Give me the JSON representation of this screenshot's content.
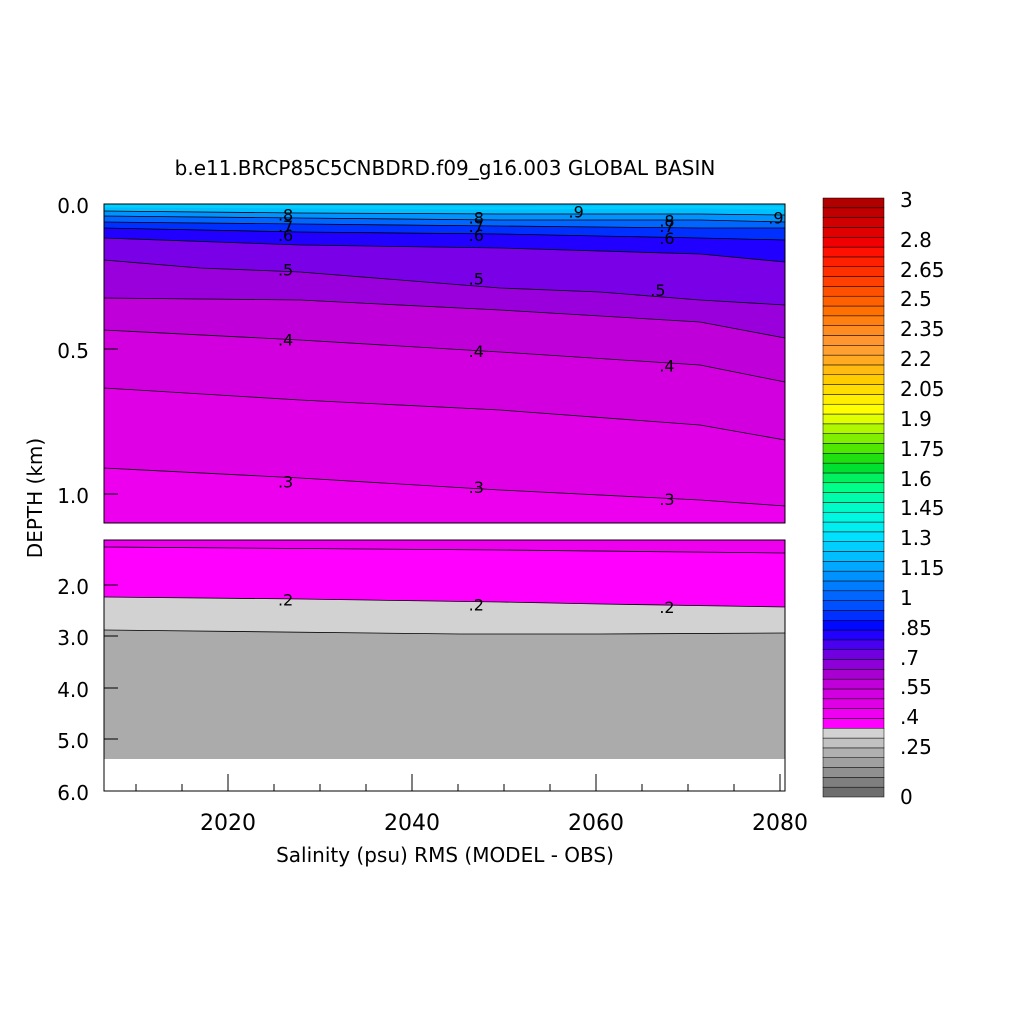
{
  "chart_data": {
    "type": "heatmap",
    "title": "b.e11.BRCP85C5CNBDRD.f09_g16.003 GLOBAL BASIN",
    "xlabel": "Salinity (psu) RMS (MODEL - OBS)",
    "ylabel": "DEPTH (km)",
    "xlim": [
      2006,
      2081
    ],
    "x_ticks": [
      "2020",
      "2040",
      "2060",
      "2080"
    ],
    "y_ticks_upper": [
      "0.0",
      "0.5",
      "1.0"
    ],
    "y_ticks_lower": [
      "2.0",
      "3.0",
      "4.0",
      "5.0",
      "6.0"
    ],
    "ylim_upper": [
      0.0,
      1.1
    ],
    "ylim_lower": [
      1.1,
      6.0
    ],
    "colorbar": {
      "labels": [
        "3",
        "2.8",
        "2.65",
        "2.5",
        "2.35",
        "2.2",
        "2.05",
        "1.9",
        "1.75",
        "1.6",
        "1.45",
        "1.3",
        "1.15",
        "1",
        ".85",
        ".7",
        ".55",
        ".4",
        ".25",
        "0"
      ],
      "colors": [
        "#6e6e6e",
        "#7f7f7f",
        "#909090",
        "#a0a0a0",
        "#b0b0b0",
        "#c2c2c2",
        "#d2d2d2",
        "#ff00ff",
        "#f000f0",
        "#e000e6",
        "#d000e0",
        "#c000d8",
        "#a800d0",
        "#8e00d8",
        "#7000e0",
        "#4a00f0",
        "#2200ff",
        "#0008ff",
        "#0030ff",
        "#0050ff",
        "#0066ff",
        "#007cff",
        "#0092ff",
        "#00a8ff",
        "#00beff",
        "#00cfff",
        "#00e0ff",
        "#00eef0",
        "#00f7e0",
        "#00fac8",
        "#00fcaa",
        "#00ff88",
        "#00f060",
        "#00e030",
        "#20e010",
        "#50e800",
        "#80f000",
        "#b0f800",
        "#e0ff00",
        "#ffff00",
        "#ffee00",
        "#ffdd00",
        "#ffcc00",
        "#ffbb10",
        "#ffaa20",
        "#ffa030",
        "#ff9630",
        "#ff8c20",
        "#ff8010",
        "#ff7000",
        "#ff6000",
        "#ff5000",
        "#ff4000",
        "#ff3000",
        "#ff2000",
        "#ff1000",
        "#f00000",
        "#e00000",
        "#d00000",
        "#c00000",
        "#b00000"
      ]
    },
    "contour_labels": [
      {
        "text": ".9",
        "x": 2058,
        "depth": 0.03
      },
      {
        "text": ".9",
        "x": 2080,
        "depth": 0.05
      },
      {
        "text": ".8",
        "x": 2026,
        "depth": 0.04
      },
      {
        "text": ".8",
        "x": 2047,
        "depth": 0.05
      },
      {
        "text": ".8",
        "x": 2068,
        "depth": 0.06
      },
      {
        "text": ".7",
        "x": 2026,
        "depth": 0.08
      },
      {
        "text": ".7",
        "x": 2047,
        "depth": 0.08
      },
      {
        "text": ".7",
        "x": 2068,
        "depth": 0.08
      },
      {
        "text": ".6",
        "x": 2026,
        "depth": 0.11
      },
      {
        "text": ".6",
        "x": 2047,
        "depth": 0.11
      },
      {
        "text": ".6",
        "x": 2068,
        "depth": 0.12
      },
      {
        "text": ".5",
        "x": 2026,
        "depth": 0.23
      },
      {
        "text": ".5",
        "x": 2047,
        "depth": 0.26
      },
      {
        "text": ".5",
        "x": 2067,
        "depth": 0.3
      },
      {
        "text": ".4",
        "x": 2026,
        "depth": 0.47
      },
      {
        "text": ".4",
        "x": 2047,
        "depth": 0.51
      },
      {
        "text": ".4",
        "x": 2068,
        "depth": 0.56
      },
      {
        "text": ".3",
        "x": 2026,
        "depth": 0.96
      },
      {
        "text": ".3",
        "x": 2047,
        "depth": 0.98
      },
      {
        "text": ".3",
        "x": 2068,
        "depth": 1.02
      },
      {
        "text": ".2",
        "x": 2026,
        "depth": 2.3
      },
      {
        "text": ".2",
        "x": 2047,
        "depth": 2.4
      },
      {
        "text": ".2",
        "x": 2068,
        "depth": 2.45
      }
    ]
  }
}
